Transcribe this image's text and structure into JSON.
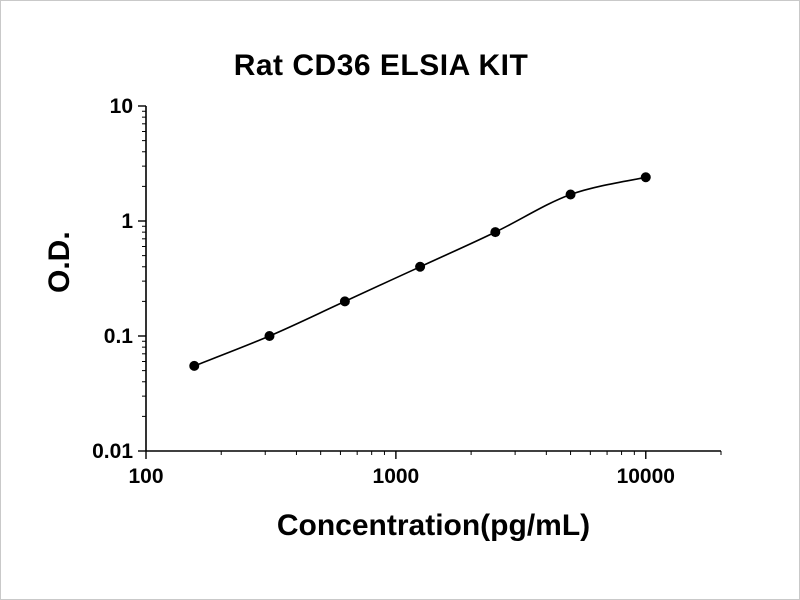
{
  "chart_data": {
    "type": "line",
    "title": "Rat CD36 ELSIA KIT",
    "xlabel": "Concentration(pg/mL)",
    "ylabel": "O.D.",
    "x_scale": "log",
    "y_scale": "log",
    "xlim": [
      100,
      20000
    ],
    "ylim": [
      0.01,
      10
    ],
    "x_major_ticks": [
      100,
      1000,
      10000
    ],
    "y_major_ticks": [
      0.01,
      0.1,
      1,
      10
    ],
    "grid": "off",
    "legend": "none",
    "line_color": "#000000",
    "marker_color": "#000000",
    "points": [
      {
        "x": 156,
        "y": 0.055
      },
      {
        "x": 312,
        "y": 0.1
      },
      {
        "x": 625,
        "y": 0.2
      },
      {
        "x": 1250,
        "y": 0.4
      },
      {
        "x": 2500,
        "y": 0.8
      },
      {
        "x": 5000,
        "y": 1.7
      },
      {
        "x": 10000,
        "y": 2.4
      }
    ]
  }
}
